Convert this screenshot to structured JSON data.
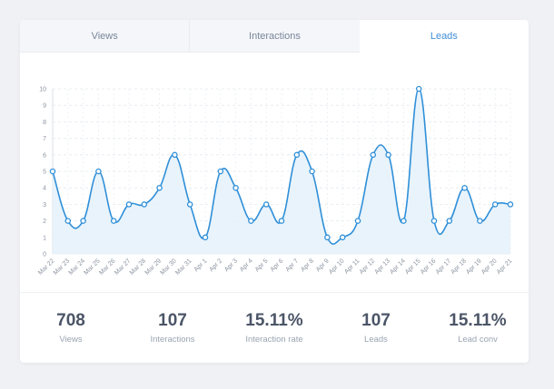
{
  "tabs": [
    {
      "label": "Views",
      "active": false
    },
    {
      "label": "Interactions",
      "active": false
    },
    {
      "label": "Leads",
      "active": true
    }
  ],
  "colors": {
    "accent": "#3f8ed8",
    "line": "#2f8fd8",
    "area": "#e6f2fb",
    "grid": "#e4e8ee",
    "background": "#f0f1f4"
  },
  "chart_data": {
    "type": "area",
    "title": "",
    "xlabel": "",
    "ylabel": "",
    "ylim": [
      0,
      10
    ],
    "y_ticks": [
      0,
      1,
      2,
      3,
      4,
      5,
      6,
      7,
      8,
      9,
      10
    ],
    "grid": true,
    "categories": [
      "Mar 22",
      "Mar 23",
      "Mar 24",
      "Mar 25",
      "Mar 26",
      "Mar 27",
      "Mar 28",
      "Mar 29",
      "Mar 30",
      "Mar 31",
      "Apr 1",
      "Apr 2",
      "Apr 3",
      "Apr 4",
      "Apr 5",
      "Apr 6",
      "Apr 7",
      "Apr 8",
      "Apr 9",
      "Apr 10",
      "Apr 11",
      "Apr 12",
      "Apr 13",
      "Apr 14",
      "Apr 15",
      "Apr 16",
      "Apr 17",
      "Apr 18",
      "Apr 19",
      "Apr 20",
      "Apr 21"
    ],
    "series": [
      {
        "values": [
          5,
          2,
          2,
          5,
          2,
          3,
          3,
          4,
          6,
          3,
          1,
          5,
          4,
          2,
          3,
          2,
          6,
          5,
          1,
          1,
          2,
          6,
          6,
          2,
          10,
          2,
          2,
          4,
          2,
          3,
          3
        ]
      }
    ]
  },
  "stats": [
    {
      "value": "708",
      "label": "Views"
    },
    {
      "value": "107",
      "label": "Interactions"
    },
    {
      "value": "15.11%",
      "label": "Interaction rate"
    },
    {
      "value": "107",
      "label": "Leads"
    },
    {
      "value": "15.11%",
      "label": "Lead conv"
    }
  ]
}
